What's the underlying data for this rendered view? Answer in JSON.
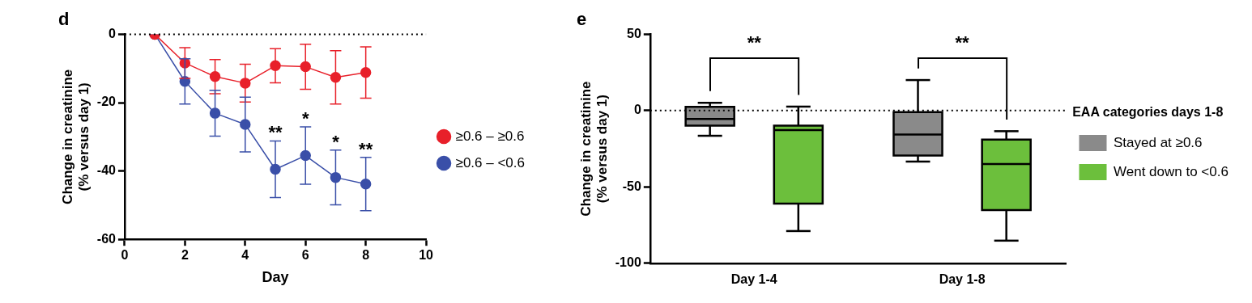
{
  "chart_data": [
    {
      "type": "line",
      "title": "d",
      "xlabel": "Day",
      "ylabel": "Change in creatinine\n(% versus day 1)",
      "x": [
        1,
        2,
        3,
        4,
        5,
        6,
        7,
        8
      ],
      "xlim": [
        0,
        10
      ],
      "xticks": [
        0,
        2,
        4,
        6,
        8,
        10
      ],
      "ylim": [
        -60,
        0
      ],
      "yticks": [
        -60,
        -40,
        -20,
        0
      ],
      "grid": false,
      "legend": "right",
      "marker": "circle",
      "series": [
        {
          "name": "≥0.6 – ≥0.6",
          "color": "#e8202a",
          "values": [
            0,
            -8.4,
            -12.4,
            -14.3,
            -9.2,
            -9.5,
            -12.6,
            -11.2
          ],
          "errors": [
            null,
            4.5,
            5,
            5.5,
            5,
            6.6,
            7.8,
            7.5
          ]
        },
        {
          "name": "≥0.6 – <0.6",
          "color": "#3a4fa8",
          "values": [
            0,
            -13.8,
            -23.1,
            -26.4,
            -39.5,
            -35.5,
            -41.9,
            -43.8
          ],
          "errors": [
            null,
            6.6,
            6.7,
            8,
            8.3,
            8.4,
            8,
            7.8
          ],
          "value_labels": [
            null,
            null,
            null,
            null,
            "**",
            "*",
            "*",
            "**"
          ]
        }
      ],
      "ref_lines": [
        {
          "axis": "y",
          "value": 0,
          "line_style": "dotted",
          "color": "#000000"
        }
      ]
    },
    {
      "type": "box",
      "title": "e",
      "ylabel": "Change in creatinine\n(% versus day 1)",
      "categories": [
        "Day 1-4",
        "Day 1-8"
      ],
      "ylim": [
        -100,
        50
      ],
      "yticks": [
        -100,
        -50,
        0,
        50
      ],
      "grid": false,
      "legend": "right",
      "legend_title": "EAA categories days 1-8",
      "series": [
        {
          "name": "Stayed at ≥0.6",
          "color": "#8a8a8a",
          "boxes": [
            {
              "low": -16.5,
              "q1": -9.8,
              "median": -5.5,
              "q3": 2.4,
              "high": 5.1
            },
            {
              "low": -33.4,
              "q1": -29.5,
              "median": -15.7,
              "q3": -1,
              "high": 20
            }
          ]
        },
        {
          "name": "Went down to <0.6",
          "color": "#6cbf3c",
          "boxes": [
            {
              "low": -78.9,
              "q1": -60.9,
              "median": -12.8,
              "q3": -9.8,
              "high": 2.6
            },
            {
              "low": -85.2,
              "q1": -65.2,
              "median": -35,
              "q3": -19,
              "high": -13.5
            }
          ]
        }
      ],
      "ref_lines": [
        {
          "axis": "y",
          "value": 0,
          "line_style": "dotted",
          "color": "#000000"
        }
      ],
      "annotations": [
        "**",
        "**"
      ]
    }
  ]
}
